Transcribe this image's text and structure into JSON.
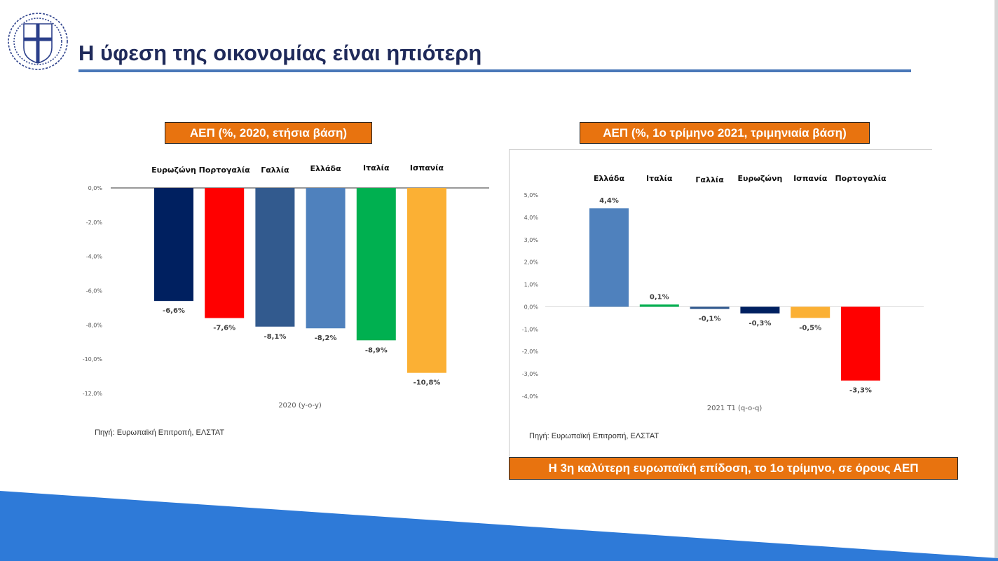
{
  "slide": {
    "title": "Η ύφεση της οικονομίας είναι ηπιότερη",
    "left_box": "ΑΕΠ (%, 2020, ετήσια βάση)",
    "right_box": "ΑΕΠ (%, 1ο τρίμηνο 2021, τριμηνιαία βάση)",
    "bottom_box": "Η 3η καλύτερη ευρωπαϊκή επίδοση, το 1ο τρίμηνο, σε όρους ΑΕΠ",
    "left_source": "Πηγή: Ευρωπαϊκή Επιτροπή, ΕΛΣΤΑΤ",
    "right_source": "Πηγή: Ευρωπαϊκή Επιτροπή, ΕΛΣΤΑΤ",
    "accent_color": "#e8730f",
    "title_color": "#1f2a5a",
    "band_color": "#2e7ad8"
  },
  "chart_data": [
    {
      "type": "bar",
      "categories": [
        "Ευρωζώνη",
        "Πορτογαλία",
        "Γαλλία",
        "Ελλάδα",
        "Ιταλία",
        "Ισπανία"
      ],
      "values": [
        -6.6,
        -7.6,
        -8.1,
        -8.2,
        -8.9,
        -10.8
      ],
      "value_labels": [
        "-6,6%",
        "-7,6%",
        "-8,1%",
        "-8,2%",
        "-8,9%",
        "-10,8%"
      ],
      "colors": [
        "#002060",
        "#ff0000",
        "#325a8e",
        "#4f81bd",
        "#00b050",
        "#fbb034"
      ],
      "ylim": [
        -12,
        0
      ],
      "yticks": [
        0,
        -2,
        -4,
        -6,
        -8,
        -10,
        -12
      ],
      "ytick_labels": [
        "0,0%",
        "-2,0%",
        "-4,0%",
        "-6,0%",
        "-8,0%",
        "-10,0%",
        "-12,0%"
      ],
      "xlabel": "2020 (y-o-y)",
      "category_position": "top"
    },
    {
      "type": "bar",
      "categories": [
        "Ελλάδα",
        "Ιταλία",
        "Γαλλία",
        "Ευρωζώνη",
        "Ισπανία",
        "Πορτογαλία"
      ],
      "values": [
        4.4,
        0.1,
        -0.1,
        -0.3,
        -0.5,
        -3.3
      ],
      "value_labels": [
        "4,4%",
        "0,1%",
        "-0,1%",
        "-0,3%",
        "-0,5%",
        "-3,3%"
      ],
      "colors": [
        "#4f81bd",
        "#00b050",
        "#325a8e",
        "#002060",
        "#fbb034",
        "#ff0000"
      ],
      "ylim": [
        -4,
        5
      ],
      "yticks": [
        5,
        4,
        3,
        2,
        1,
        0,
        -1,
        -2,
        -3,
        -4
      ],
      "ytick_labels": [
        "5,0%",
        "4,0%",
        "3,0%",
        "2,0%",
        "1,0%",
        "0,0%",
        "-1,0%",
        "-2,0%",
        "-3,0%",
        "-4,0%"
      ],
      "xlabel": "2021 T1 (q-o-q)",
      "category_position": "top"
    }
  ]
}
